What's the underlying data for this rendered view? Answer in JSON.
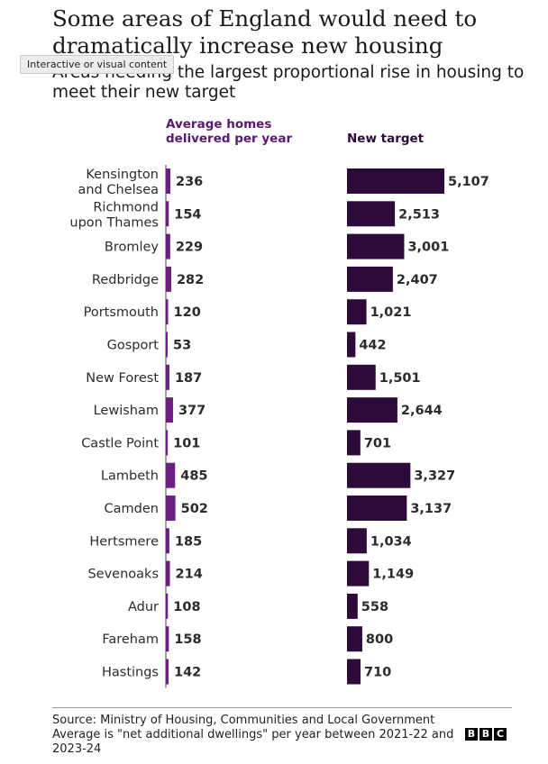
{
  "header": {
    "title": "Some areas of England would need to dramatically increase new housing",
    "subtitle": "Areas needing the largest proportional rise in housing to meet their new target",
    "badge": "Interactive or visual content"
  },
  "columns": {
    "left": "Average homes delivered per year",
    "right": "New target"
  },
  "colors": {
    "left_bar": "#6b1f80",
    "right_bar": "#2e0a3a"
  },
  "chart_data": {
    "type": "bar",
    "orientation": "horizontal",
    "categories": [
      "Kensington and Chelsea",
      "Richmond upon Thames",
      "Bromley",
      "Redbridge",
      "Portsmouth",
      "Gosport",
      "New Forest",
      "Lewisham",
      "Castle Point",
      "Lambeth",
      "Camden",
      "Hertsmere",
      "Sevenoaks",
      "Adur",
      "Fareham",
      "Hastings"
    ],
    "series": [
      {
        "name": "Average homes delivered per year",
        "values": [
          236,
          154,
          229,
          282,
          120,
          53,
          187,
          377,
          101,
          485,
          502,
          185,
          214,
          108,
          158,
          142
        ],
        "labels": [
          "236",
          "154",
          "229",
          "282",
          "120",
          "53",
          "187",
          "377",
          "101",
          "485",
          "502",
          "185",
          "214",
          "108",
          "158",
          "142"
        ]
      },
      {
        "name": "New target",
        "values": [
          5107,
          2513,
          3001,
          2407,
          1021,
          442,
          1501,
          2644,
          701,
          3327,
          3137,
          1034,
          1149,
          558,
          800,
          710
        ],
        "labels": [
          "5,107",
          "2,513",
          "3,001",
          "2,407",
          "1,021",
          "442",
          "1,501",
          "2,644",
          "701",
          "3,327",
          "3,137",
          "1,034",
          "1,149",
          "558",
          "800",
          "710"
        ]
      }
    ],
    "shared_scale": true,
    "grid": false,
    "legend": "none"
  },
  "footer": {
    "source": "Source: Ministry of Housing, Communities and Local Government",
    "note": "Average is \"net additional dwellings\" per year between 2021-22 and 2023-24",
    "logo_letters": [
      "B",
      "B",
      "C"
    ]
  }
}
